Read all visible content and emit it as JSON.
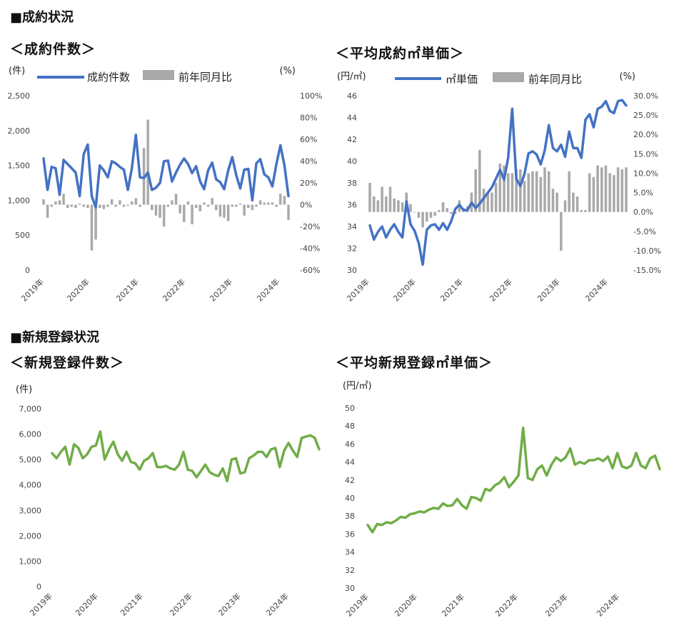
{
  "sections": {
    "contracts": "■成約状況",
    "registrations": "■新規登録状況"
  },
  "colors": {
    "line_blue": "#4472C4",
    "bar_gray": "#A9A9A9",
    "line_green": "#70AD47"
  },
  "chart_data": [
    {
      "id": "c1",
      "type": "bar+line",
      "title": "＜成約件数＞",
      "y_left_unit": "(件)",
      "y_right_unit": "(%)",
      "legend": [
        "成約件数",
        "前年同月比"
      ],
      "y_left_range": [
        0,
        2500
      ],
      "y_left_ticks": [
        "2,500",
        "2,000",
        "1,500",
        "1,000",
        "500",
        "0"
      ],
      "y_right_range": [
        -60,
        100
      ],
      "y_right_ticks": [
        "100%",
        "80%",
        "60%",
        "40%",
        "20%",
        "0%",
        "-20%",
        "-40%",
        "-60%"
      ],
      "x_labels": [
        "2019年",
        "2020年",
        "2021年",
        "2022年",
        "2023年",
        "2024年"
      ],
      "series": [
        {
          "name": "成約件数",
          "type": "line",
          "axis": "left",
          "values": [
            1600,
            1150,
            1480,
            1460,
            1080,
            1580,
            1520,
            1460,
            1400,
            1060,
            1660,
            1800,
            1060,
            900,
            1500,
            1430,
            1330,
            1560,
            1530,
            1480,
            1440,
            1150,
            1460,
            1940,
            1330,
            1320,
            1400,
            1150,
            1180,
            1250,
            1560,
            1570,
            1270,
            1400,
            1510,
            1600,
            1520,
            1390,
            1490,
            1270,
            1160,
            1430,
            1540,
            1300,
            1260,
            1160,
            1430,
            1620,
            1360,
            1170,
            1440,
            1450,
            1000,
            1530,
            1590,
            1370,
            1330,
            1200,
            1520,
            1790,
            1500,
            1060
          ]
        },
        {
          "name": "前年同月比",
          "type": "bar",
          "axis": "right",
          "values": [
            5,
            -12,
            -2,
            3,
            4,
            10,
            -3,
            -2,
            -3,
            1,
            -2,
            -3,
            -42,
            -32,
            -3,
            -4,
            -2,
            5,
            -2,
            4,
            -2,
            -1,
            3,
            6,
            -2,
            52,
            78,
            -5,
            -10,
            -12,
            -20,
            -2,
            4,
            10,
            -8,
            -16,
            3,
            -18,
            -3,
            -6,
            2,
            -2,
            6,
            -5,
            -11,
            -12,
            -15,
            -2,
            -2,
            1,
            -10,
            -3,
            -5,
            -2,
            4,
            2,
            2,
            2,
            -2,
            10,
            8,
            -14
          ]
        }
      ]
    },
    {
      "id": "c2",
      "type": "bar+line",
      "title": "＜平均成約㎡単価＞",
      "y_left_unit": "(円/㎡)",
      "y_right_unit": "(%)",
      "legend": [
        "㎡単価",
        "前年同月比"
      ],
      "y_left_range": [
        30,
        46
      ],
      "y_left_ticks": [
        "46",
        "44",
        "42",
        "40",
        "38",
        "36",
        "34",
        "32",
        "30"
      ],
      "y_right_range": [
        -15,
        30
      ],
      "y_right_ticks": [
        "30.0%",
        "25.0%",
        "20.0%",
        "15.0%",
        "10.0%",
        "5.0%",
        "0.0%",
        "-5.0%",
        "-10.0%",
        "-15.0%"
      ],
      "x_labels": [
        "2019年",
        "2020年",
        "2021年",
        "2022年",
        "2023年",
        "2024年"
      ],
      "series": [
        {
          "name": "㎡単価",
          "type": "line",
          "axis": "left",
          "values": [
            34.1,
            32.8,
            33.5,
            34.0,
            33.0,
            33.7,
            34.2,
            33.5,
            33.0,
            36.3,
            34.2,
            33.6,
            32.5,
            30.5,
            33.7,
            34.1,
            34.2,
            33.7,
            34.3,
            33.7,
            34.5,
            35.6,
            36.0,
            35.5,
            35.5,
            36.2,
            35.7,
            36.1,
            36.6,
            37.1,
            37.6,
            38.4,
            39.2,
            38.3,
            40.3,
            44.8,
            38.4,
            37.7,
            38.8,
            40.7,
            40.9,
            40.6,
            39.7,
            41.0,
            43.3,
            41.2,
            40.9,
            41.5,
            40.4,
            42.7,
            41.2,
            41.2,
            40.3,
            43.8,
            44.3,
            43.1,
            44.8,
            45.0,
            45.5,
            44.6,
            44.4,
            45.5,
            45.6,
            45.1
          ]
        },
        {
          "name": "前年同月比",
          "type": "bar",
          "axis": "right",
          "values": [
            7.5,
            4,
            3,
            6.5,
            4,
            6.5,
            3.5,
            3,
            2.5,
            5,
            2,
            0,
            -1.5,
            -4,
            -2.5,
            -1.5,
            -1,
            0.5,
            2.5,
            1,
            -0.5,
            -0.5,
            3,
            1,
            1.5,
            5,
            11,
            16,
            6,
            5,
            5,
            7.5,
            12.5,
            12,
            10,
            10,
            11,
            11,
            8,
            10,
            10.5,
            10.5,
            9,
            11.5,
            10.5,
            6,
            5,
            -10,
            3,
            10.5,
            5,
            4,
            0.5,
            0.5,
            10,
            9,
            12,
            11.5,
            12,
            10,
            9.5,
            11.5,
            11,
            11.5
          ]
        }
      ]
    },
    {
      "id": "c3",
      "type": "line",
      "title": "＜新規登録件数＞",
      "y_unit": "(件)",
      "y_range": [
        0,
        7000
      ],
      "y_ticks": [
        "7,000",
        "6,000",
        "5,000",
        "4,000",
        "3,000",
        "2,000",
        "1,000",
        "0"
      ],
      "x_labels": [
        "2019年",
        "2020年",
        "2021年",
        "2022年",
        "2023年",
        "2024年"
      ],
      "series": [
        {
          "values": [
            5250,
            5050,
            5300,
            5500,
            4800,
            5600,
            5450,
            5050,
            5200,
            5500,
            5550,
            6100,
            5000,
            5400,
            5700,
            5200,
            4950,
            5300,
            4900,
            4850,
            4600,
            4950,
            5050,
            5250,
            4700,
            4700,
            4750,
            4650,
            4600,
            4800,
            5300,
            4600,
            4550,
            4300,
            4550,
            4800,
            4500,
            4400,
            4350,
            4650,
            4150,
            5000,
            5050,
            4450,
            4500,
            5050,
            5150,
            5300,
            5300,
            5100,
            5400,
            5450,
            4700,
            5350,
            5650,
            5350,
            5100,
            5850,
            5900,
            5950,
            5850,
            5400
          ]
        }
      ]
    },
    {
      "id": "c4",
      "type": "line",
      "title": "＜平均新規登録㎡単価＞",
      "y_unit": "(円/㎡)",
      "y_range": [
        30,
        50
      ],
      "y_ticks": [
        "50",
        "48",
        "46",
        "44",
        "42",
        "40",
        "38",
        "36",
        "34",
        "32",
        "30"
      ],
      "x_labels": [
        "2019年",
        "2020年",
        "2021年",
        "2022年",
        "2023年",
        "2024年"
      ],
      "series": [
        {
          "values": [
            37.0,
            36.2,
            37.1,
            37.0,
            37.3,
            37.2,
            37.5,
            37.9,
            37.8,
            38.2,
            38.3,
            38.5,
            38.4,
            38.7,
            38.9,
            38.8,
            39.4,
            39.1,
            39.2,
            39.9,
            39.2,
            38.8,
            40.1,
            40.0,
            39.7,
            41.0,
            40.8,
            41.4,
            41.7,
            42.3,
            41.2,
            41.8,
            42.5,
            47.8,
            42.2,
            42.0,
            43.2,
            43.6,
            42.5,
            43.7,
            44.5,
            44.1,
            44.5,
            45.5,
            43.7,
            44.0,
            43.8,
            44.2,
            44.2,
            44.4,
            44.1,
            44.6,
            43.3,
            45.0,
            43.5,
            43.3,
            43.6,
            45.0,
            43.6,
            43.3,
            44.4,
            44.7,
            43.2
          ]
        }
      ]
    }
  ]
}
